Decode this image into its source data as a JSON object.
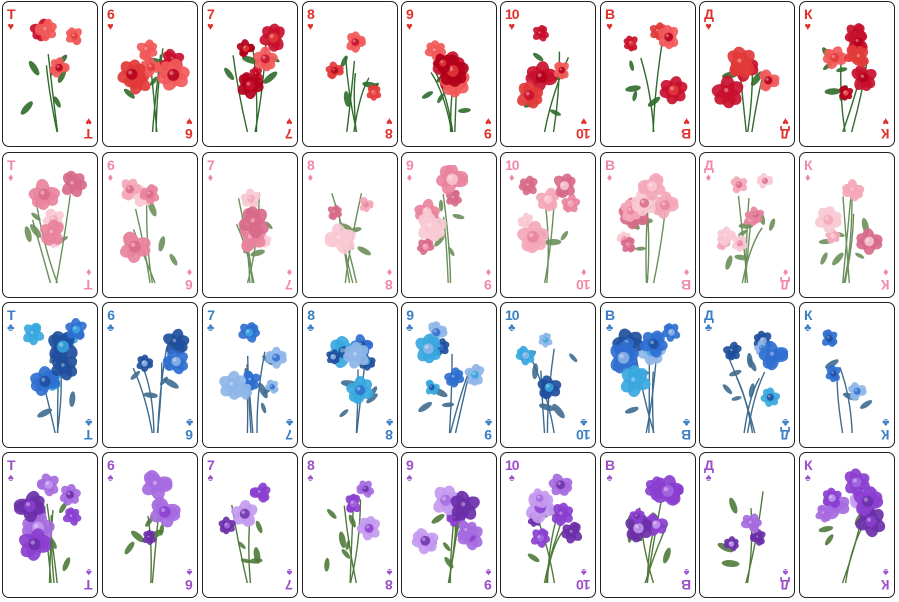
{
  "deck": {
    "rows": [
      {
        "suit_name": "hearts",
        "suit_symbol": "♥",
        "suit_color": "#e0322c",
        "palette": [
          "#c8102e",
          "#e23a3a",
          "#b3001b",
          "#f25a5a"
        ],
        "leaf": "#2f6b2a",
        "cards": [
          {
            "rank": "Т",
            "flower": "red-poppy"
          },
          {
            "rank": "6",
            "flower": "red-rose"
          },
          {
            "rank": "7",
            "flower": "red-roses"
          },
          {
            "rank": "8",
            "flower": "red-rose-bouquet"
          },
          {
            "rank": "9",
            "flower": "red-rose-sprigs"
          },
          {
            "rank": "10",
            "flower": "red-rose-bunch"
          },
          {
            "rank": "В",
            "flower": "red-rose-cluster"
          },
          {
            "rank": "Д",
            "flower": "red-rose-bouquet"
          },
          {
            "rank": "К",
            "flower": "red-rose-garland"
          }
        ]
      },
      {
        "suit_name": "diamonds",
        "suit_symbol": "♦",
        "suit_color": "#f08aa8",
        "palette": [
          "#f4a7b9",
          "#e8839d",
          "#f9c9d4",
          "#d86a8a"
        ],
        "leaf": "#6b8f5a",
        "cards": [
          {
            "rank": "Т",
            "flower": "pink-roses"
          },
          {
            "rank": "6",
            "flower": "pink-peonies"
          },
          {
            "rank": "7",
            "flower": "pink-rose-branch"
          },
          {
            "rank": "8",
            "flower": "pink-rose"
          },
          {
            "rank": "9",
            "flower": "pink-blossoms"
          },
          {
            "rank": "10",
            "flower": "pink-rose-bouquet"
          },
          {
            "rank": "В",
            "flower": "pink-rose-posy"
          },
          {
            "rank": "Д",
            "flower": "pink-rose-bouquet"
          },
          {
            "rank": "К",
            "flower": "pink-rose-branch"
          }
        ]
      },
      {
        "suit_name": "clubs",
        "suit_symbol": "♣",
        "suit_color": "#3c7fc4",
        "palette": [
          "#8fb6e8",
          "#2f6fd0",
          "#39a8e0",
          "#1f4f9c"
        ],
        "leaf": "#3f6b8f",
        "cards": [
          {
            "rank": "Т",
            "flower": "blue-hydrangea"
          },
          {
            "rank": "6",
            "flower": "cornflowers"
          },
          {
            "rank": "7",
            "flower": "pale-blue-bouquet"
          },
          {
            "rank": "8",
            "flower": "blue-flower-stem"
          },
          {
            "rank": "9",
            "flower": "cyan-lilies"
          },
          {
            "rank": "10",
            "flower": "blue-hydrangea"
          },
          {
            "rank": "В",
            "flower": "turquoise-dahlias"
          },
          {
            "rank": "Д",
            "flower": "blue-flower-branch"
          },
          {
            "rank": "К",
            "flower": "blue-roses"
          }
        ]
      },
      {
        "suit_name": "spades",
        "suit_symbol": "♠",
        "suit_color": "#9b4fc8",
        "palette": [
          "#8a3fd0",
          "#a66be0",
          "#6b2fa8",
          "#c49af0"
        ],
        "leaf": "#4f7a3a",
        "cards": [
          {
            "rank": "Т",
            "flower": "purple-orchids"
          },
          {
            "rank": "6",
            "flower": "lavender"
          },
          {
            "rank": "7",
            "flower": "lilac-roses"
          },
          {
            "rank": "8",
            "flower": "bellflowers"
          },
          {
            "rank": "9",
            "flower": "purple-lilac"
          },
          {
            "rank": "10",
            "flower": "purple-tulips"
          },
          {
            "rank": "В",
            "flower": "lilac-sprig"
          },
          {
            "rank": "Д",
            "flower": "purple-roses"
          },
          {
            "rank": "К",
            "flower": "lilac-sprig"
          }
        ]
      }
    ]
  }
}
